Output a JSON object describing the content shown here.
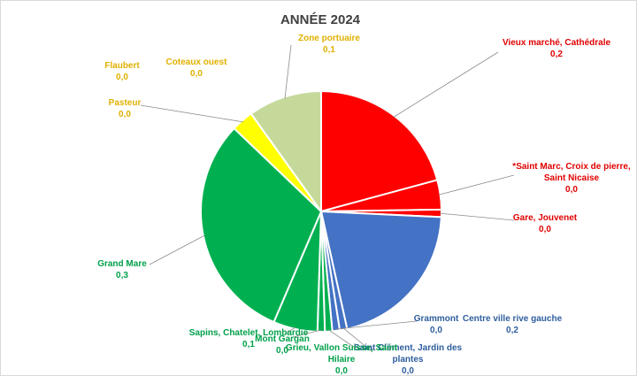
{
  "chart_data": {
    "type": "pie",
    "title": "ANNÉE 2024",
    "slices": [
      {
        "label": "Vieux marché, Cathédrale",
        "label_lines": [
          "Vieux marché, Cathédrale"
        ],
        "value": 0.21,
        "value_label": "0,2",
        "color": "#FF0000",
        "label_color": "#E00000"
      },
      {
        "label": "*Saint Marc, Croix de pierre, Saint Nicaise",
        "label_lines": [
          "*Saint Marc, Croix de pierre,",
          "Saint Nicaise"
        ],
        "value": 0.04,
        "value_label": "0,0",
        "color": "#FF0000",
        "label_color": "#E00000"
      },
      {
        "label": "Gare, Jouvenet",
        "label_lines": [
          "Gare, Jouvenet"
        ],
        "value": 0.01,
        "value_label": "0,0",
        "color": "#FF0000",
        "label_color": "#E00000"
      },
      {
        "label": "Centre ville rive gauche",
        "label_lines": [
          "Centre ville rive gauche"
        ],
        "value": 0.21,
        "value_label": "0,2",
        "color": "#4472C4",
        "label_color": "#2E5D9E"
      },
      {
        "label": "Saint Clément, Jardin des plantes",
        "label_lines": [
          "Saint Clément, Jardin des",
          "plantes"
        ],
        "value": 0.01,
        "value_label": "0,0",
        "color": "#4472C4",
        "label_color": "#2E5D9E"
      },
      {
        "label": "Grammont",
        "label_lines": [
          "Grammont"
        ],
        "value": 0.01,
        "value_label": "0,0",
        "color": "#4472C4",
        "label_color": "#2E5D9E"
      },
      {
        "label": "Grieu, Vallon Suisse, Saint Hilaire",
        "label_lines": [
          "Grieu, Vallon Suisse, Saint",
          "Hilaire"
        ],
        "value": 0.01,
        "value_label": "0,0",
        "color": "#00B050",
        "label_color": "#00A04A"
      },
      {
        "label": "Mont Gargan",
        "label_lines": [
          "Mont Gargan"
        ],
        "value": 0.01,
        "value_label": "0,0",
        "color": "#00B050",
        "label_color": "#00A04A"
      },
      {
        "label": "Sapins, Chatelet, Lombardie",
        "label_lines": [
          "Sapins, Chatelet, Lombardie"
        ],
        "value": 0.06,
        "value_label": "0,1",
        "color": "#00B050",
        "label_color": "#00A04A"
      },
      {
        "label": "Grand Mare",
        "label_lines": [
          "Grand Mare"
        ],
        "value": 0.31,
        "value_label": "0,3",
        "color": "#00B050",
        "label_color": "#00A04A"
      },
      {
        "label": "Pasteur",
        "label_lines": [
          "Pasteur"
        ],
        "value": 0.03,
        "value_label": "0,0",
        "color": "#FFFF00",
        "label_color": "#E0B000"
      },
      {
        "label": "Flaubert",
        "label_lines": [
          "Flaubert"
        ],
        "value": 0.0,
        "value_label": "0,0",
        "color": "#FFFF00",
        "label_color": "#E0B000"
      },
      {
        "label": "Coteaux ouest",
        "label_lines": [
          "Coteaux ouest"
        ],
        "value": 0.0,
        "value_label": "0,0",
        "color": "#C5D99B",
        "label_color": "#E0B000"
      },
      {
        "label": "Zone portuaire",
        "label_lines": [
          "Zone portuaire"
        ],
        "value": 0.1,
        "value_label": "0,1",
        "color": "#C5D99B",
        "label_color": "#E0B000"
      }
    ],
    "start": "top",
    "direction": "clockwise",
    "legend": "none"
  }
}
